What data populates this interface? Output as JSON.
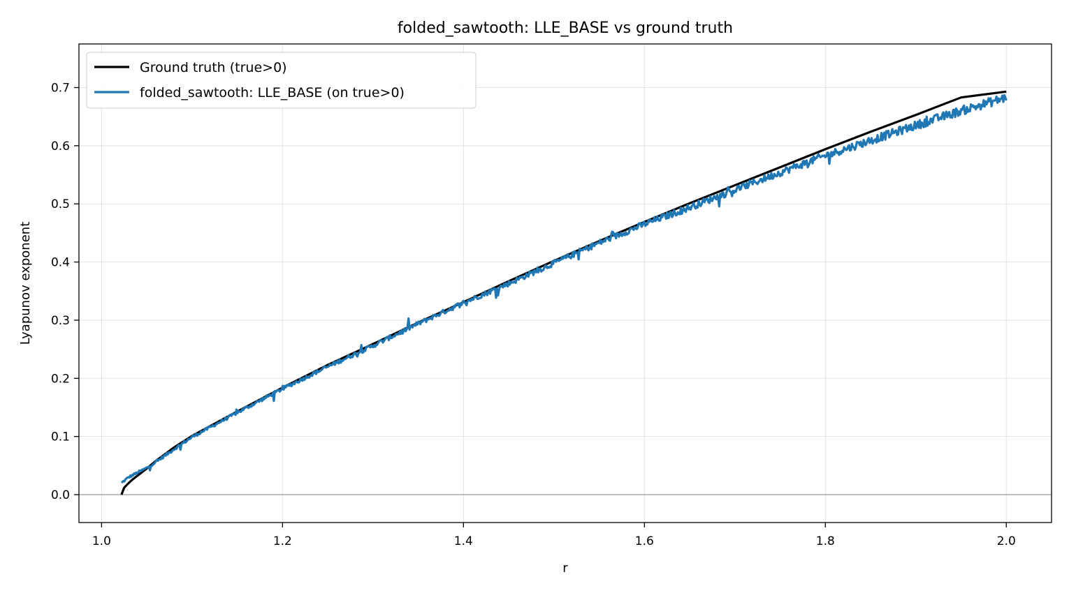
{
  "chart_data": {
    "type": "line",
    "title": "folded_sawtooth: LLE_BASE vs ground truth",
    "xlabel": "r",
    "ylabel": "Lyapunov exponent",
    "xlim": [
      0.975,
      2.05
    ],
    "ylim": [
      -0.048,
      0.775
    ],
    "xticks": [
      1.0,
      1.2,
      1.4,
      1.6,
      1.8,
      2.0
    ],
    "xtick_labels": [
      "1.0",
      "1.2",
      "1.4",
      "1.6",
      "1.8",
      "2.0"
    ],
    "yticks": [
      0.0,
      0.1,
      0.2,
      0.3,
      0.4,
      0.5,
      0.6,
      0.7
    ],
    "ytick_labels": [
      "0.0",
      "0.1",
      "0.2",
      "0.3",
      "0.4",
      "0.5",
      "0.6",
      "0.7"
    ],
    "grid": true,
    "reference_line_y": 0.0,
    "legend_position": "top-left",
    "series": [
      {
        "name": "Ground truth (true>0)",
        "color": "#000000",
        "x": [
          1.022,
          1.025,
          1.03,
          1.035,
          1.04,
          1.05,
          1.06,
          1.08,
          1.1,
          1.15,
          1.2,
          1.25,
          1.3,
          1.35,
          1.4,
          1.45,
          1.5,
          1.55,
          1.6,
          1.65,
          1.7,
          1.75,
          1.8,
          1.85,
          1.9,
          1.95,
          2.0
        ],
        "y": [
          0.0,
          0.012,
          0.02,
          0.027,
          0.033,
          0.045,
          0.058,
          0.081,
          0.101,
          0.143,
          0.184,
          0.223,
          0.259,
          0.296,
          0.331,
          0.367,
          0.402,
          0.436,
          0.469,
          0.501,
          0.532,
          0.563,
          0.594,
          0.624,
          0.653,
          0.683,
          0.693
        ]
      },
      {
        "name": "folded_sawtooth: LLE_BASE (on true>0)",
        "color": "#1f77b4",
        "x": [
          1.022,
          1.03,
          1.04,
          1.05,
          1.06,
          1.08,
          1.1,
          1.15,
          1.2,
          1.25,
          1.3,
          1.35,
          1.4,
          1.45,
          1.5,
          1.55,
          1.6,
          1.65,
          1.7,
          1.75,
          1.8,
          1.85,
          1.9,
          1.95,
          2.0
        ],
        "y": [
          0.02,
          0.03,
          0.038,
          0.046,
          0.056,
          0.078,
          0.099,
          0.141,
          0.182,
          0.22,
          0.256,
          0.294,
          0.33,
          0.363,
          0.398,
          0.433,
          0.465,
          0.494,
          0.524,
          0.554,
          0.583,
          0.609,
          0.635,
          0.66,
          0.683
        ]
      }
    ]
  }
}
